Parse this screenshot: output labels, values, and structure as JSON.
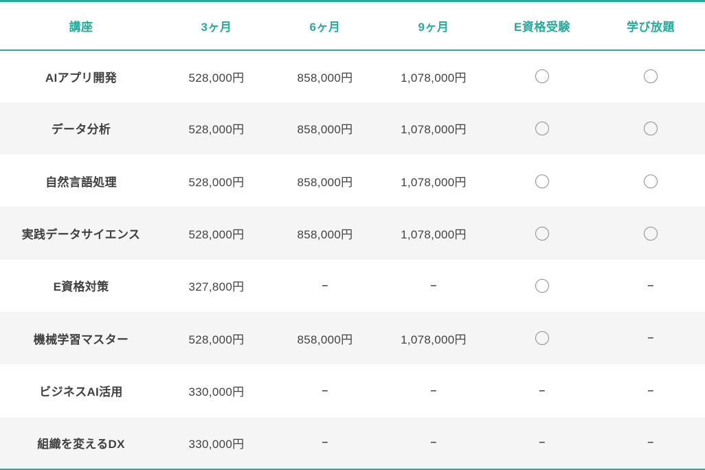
{
  "table": {
    "columns": [
      {
        "key": "course",
        "label": "講座"
      },
      {
        "key": "m3",
        "label": "3ヶ月"
      },
      {
        "key": "m6",
        "label": "6ヶ月"
      },
      {
        "key": "m9",
        "label": "9ヶ月"
      },
      {
        "key": "exam",
        "label": "E資格受験"
      },
      {
        "key": "unlimited",
        "label": "学び放題"
      }
    ],
    "symbols": {
      "available": "○",
      "not_available": "–"
    },
    "colors": {
      "accent": "#26ab9b",
      "row_alt_background": "#f5f5f5",
      "text": "#424242",
      "circle_border": "#8e8e8e"
    },
    "rows": [
      {
        "course": "AIアプリ開発",
        "m3": "528,000円",
        "m6": "858,000円",
        "m9": "1,078,000円",
        "exam": "○",
        "unlimited": "○"
      },
      {
        "course": "データ分析",
        "m3": "528,000円",
        "m6": "858,000円",
        "m9": "1,078,000円",
        "exam": "○",
        "unlimited": "○"
      },
      {
        "course": "自然言語処理",
        "m3": "528,000円",
        "m6": "858,000円",
        "m9": "1,078,000円",
        "exam": "○",
        "unlimited": "○"
      },
      {
        "course": "実践データサイエンス",
        "m3": "528,000円",
        "m6": "858,000円",
        "m9": "1,078,000円",
        "exam": "○",
        "unlimited": "○"
      },
      {
        "course": "E資格対策",
        "m3": "327,800円",
        "m6": "–",
        "m9": "–",
        "exam": "○",
        "unlimited": "–"
      },
      {
        "course": "機械学習マスター",
        "m3": "528,000円",
        "m6": "858,000円",
        "m9": "1,078,000円",
        "exam": "○",
        "unlimited": "–"
      },
      {
        "course": "ビジネスAI活用",
        "m3": "330,000円",
        "m6": "–",
        "m9": "–",
        "exam": "–",
        "unlimited": "–"
      },
      {
        "course": "組織を変えるDX",
        "m3": "330,000円",
        "m6": "–",
        "m9": "–",
        "exam": "–",
        "unlimited": "–"
      }
    ]
  }
}
